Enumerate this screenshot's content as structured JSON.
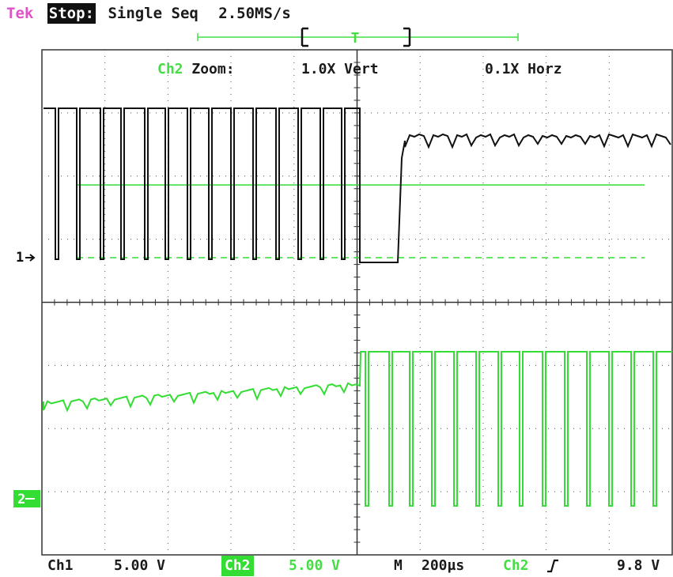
{
  "header": {
    "brand": "Tek",
    "state": "Stop:",
    "mode": "Single Seq",
    "sample_rate": "2.50MS/s",
    "trigger_marker": "T"
  },
  "zoom_info": {
    "channel": "Ch2",
    "label": "Zoom:",
    "vertical": "1.0X Vert",
    "horizontal": "0.1X Horz"
  },
  "channels": [
    {
      "name": "Ch1",
      "scale": "5.00 V",
      "marker": "1",
      "color": "#111111"
    },
    {
      "name": "Ch2",
      "scale": "5.00 V",
      "marker": "2",
      "color": "#33dd33"
    }
  ],
  "timebase": {
    "label": "M",
    "value": "200µs"
  },
  "trigger": {
    "source": "Ch2",
    "slope_icon": "rising-edge",
    "level": "9.8 V"
  },
  "colors": {
    "ch1": "#111111",
    "ch2": "#33dd33",
    "grid": "#555555",
    "brand": "#e052c8"
  }
}
